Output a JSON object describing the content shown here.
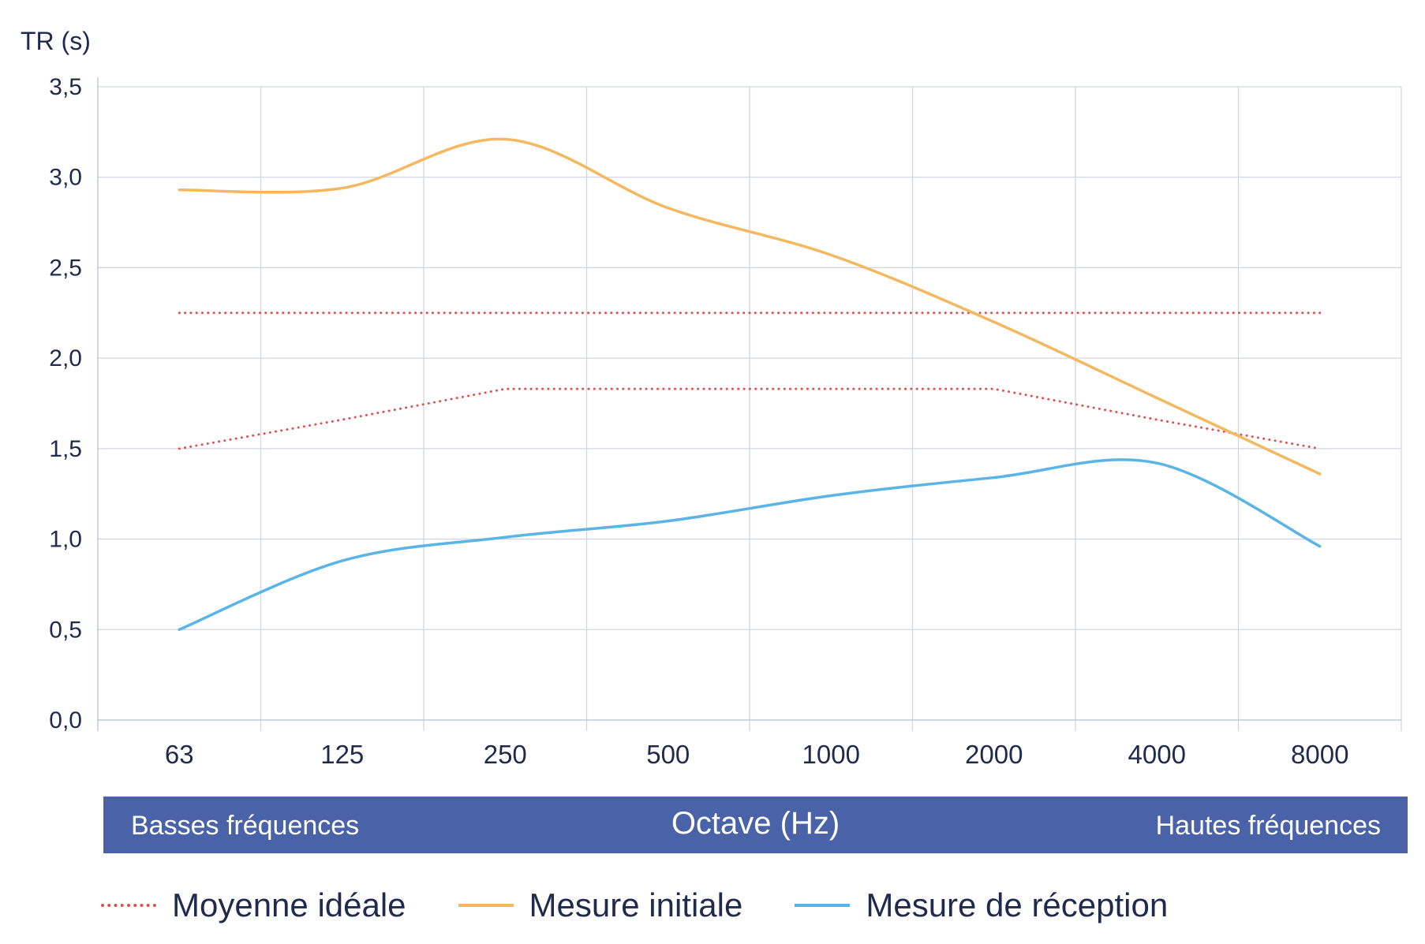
{
  "chart_data": {
    "type": "line",
    "ylabel": "TR (s)",
    "ylim": [
      0,
      3.5
    ],
    "yticks": [
      "0,0",
      "0,5",
      "1,0",
      "1,5",
      "2,0",
      "2,5",
      "3,0",
      "3,5"
    ],
    "yticks_values": [
      0,
      0.5,
      1.0,
      1.5,
      2.0,
      2.5,
      3.0,
      3.5
    ],
    "categories": [
      "63",
      "125",
      "250",
      "500",
      "1000",
      "2000",
      "4000",
      "8000"
    ],
    "grid": true,
    "series": [
      {
        "name": "Moyenne idéale",
        "style": "dotted",
        "color": "#e0504f",
        "values": [
          2.25,
          2.25,
          2.25,
          2.25,
          2.25,
          2.25,
          2.25,
          2.25
        ]
      },
      {
        "name": "Moyenne idéale",
        "style": "dotted",
        "color": "#e0504f",
        "values": [
          1.5,
          1.66,
          1.83,
          1.83,
          1.83,
          1.83,
          1.66,
          1.5
        ]
      },
      {
        "name": "Mesure initiale",
        "style": "solid",
        "color": "#f4b860",
        "values": [
          2.93,
          2.94,
          3.21,
          2.83,
          2.57,
          2.2,
          1.78,
          1.36
        ]
      },
      {
        "name": "Mesure de réception",
        "style": "solid",
        "color": "#5ab4e5",
        "values": [
          0.5,
          0.88,
          1.01,
          1.1,
          1.24,
          1.34,
          1.42,
          0.96
        ]
      }
    ],
    "band": {
      "left": "Basses fréquences",
      "center": "Octave (Hz)",
      "right": "Hautes fréquences"
    },
    "legend": [
      {
        "label": "Moyenne idéale",
        "style": "dotted",
        "color": "#e0504f"
      },
      {
        "label": "Mesure initiale",
        "style": "solid",
        "color": "#f4b860"
      },
      {
        "label": "Mesure de réception",
        "style": "solid",
        "color": "#5ab4e5"
      }
    ],
    "legend_position": "bottom"
  }
}
